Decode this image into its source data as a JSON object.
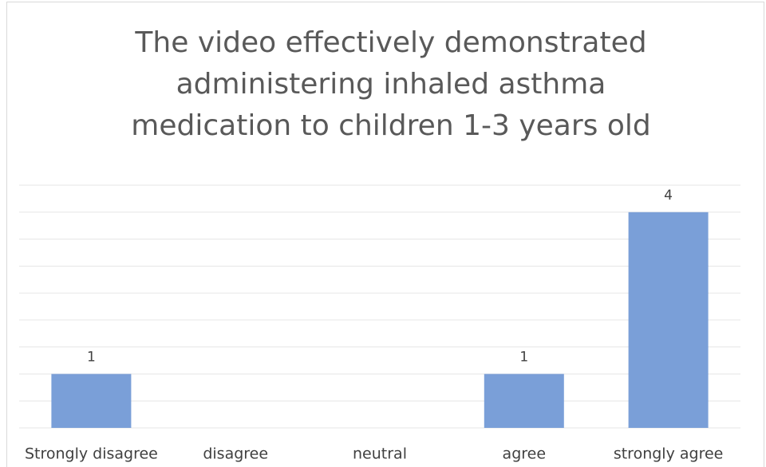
{
  "chart_data": {
    "type": "bar",
    "title": "The video effectively demonstrated administering inhaled asthma medication to children 1-3 years old",
    "categories": [
      "Strongly disagree",
      "disagree",
      "neutral",
      "agree",
      "strongly agree"
    ],
    "values": [
      1,
      0,
      0,
      1,
      4
    ],
    "color": "#7a9fd8",
    "ylim": [
      0,
      4.5
    ],
    "yticks": [
      0,
      0.5,
      1,
      1.5,
      2,
      2.5,
      3,
      3.5,
      4,
      4.5
    ],
    "grid": true
  }
}
